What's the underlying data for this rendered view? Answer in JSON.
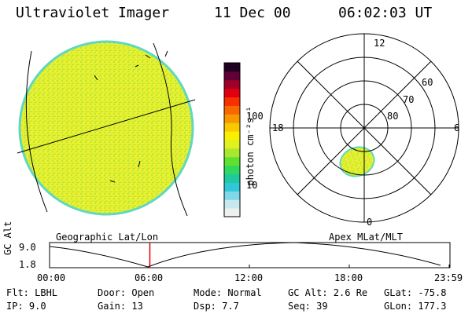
{
  "header": {
    "instrument": "Ultraviolet Imager",
    "date": "11 Dec 00",
    "time": "06:02:03 UT"
  },
  "geo_panel": {
    "label": "Geographic Lat/Lon"
  },
  "colorbar": {
    "unit_label": "photon cm⁻²s⁻¹",
    "ticks": [
      "100",
      "10"
    ],
    "colors": [
      "#f0f0f0",
      "#c8e8f0",
      "#7fd8e8",
      "#30c8d8",
      "#20c8a0",
      "#30d860",
      "#60e030",
      "#a8e830",
      "#e0f020",
      "#f8f000",
      "#f8c800",
      "#f89800",
      "#f86800",
      "#f83000",
      "#e00010",
      "#a00028",
      "#600038",
      "#200020"
    ]
  },
  "polar_panel": {
    "label": "Apex MLat/MLT",
    "mlt_labels": {
      "top": "12",
      "bottom": "0",
      "left": "18",
      "right": "6"
    },
    "lat_labels": [
      "60",
      "70",
      "80"
    ]
  },
  "altitude_strip": {
    "axis_label": "GC Alt",
    "y_ticks": [
      "9.0",
      "1.8"
    ],
    "x_ticks": [
      "00:00",
      "06:00",
      "12:00",
      "18:00",
      "23:59"
    ],
    "current_time_fraction": 0.251
  },
  "status": {
    "flt": "Flt: LBHL",
    "ip": "IP:  9.0",
    "door": "Door: Open",
    "gain": "Gain: 13",
    "mode": "Mode: Normal",
    "dsp": "Dsp:     7.7",
    "gc_alt": "GC Alt: 2.6 Re",
    "seq": "Seq: 39",
    "glat": "GLat:  -75.8",
    "glon": "GLon: 177.3"
  }
}
